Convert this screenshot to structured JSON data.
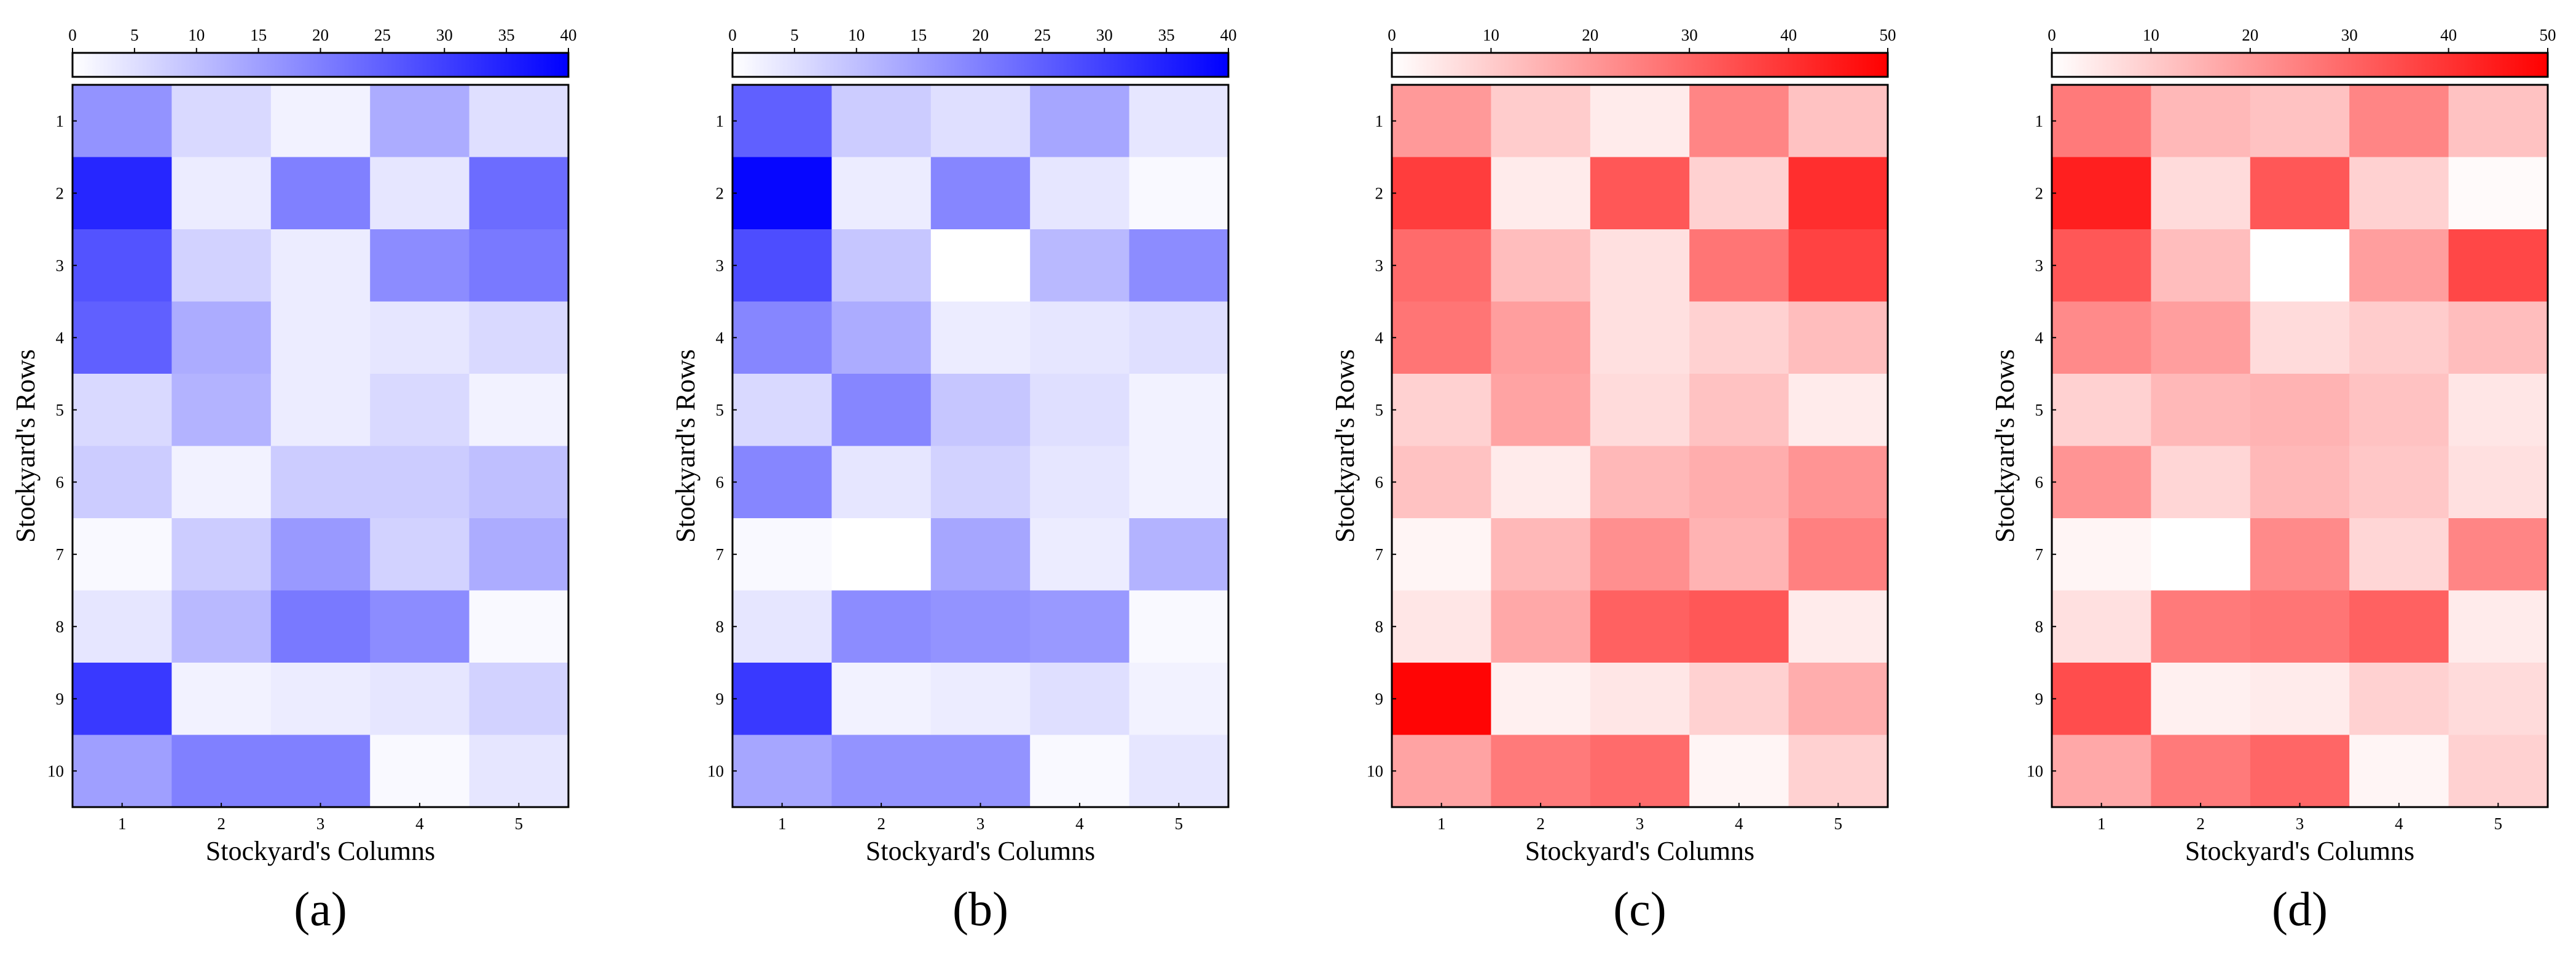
{
  "chart_data": [
    {
      "type": "heatmap",
      "panel_label": "(a)",
      "xlabel": "Stockyard's Columns",
      "ylabel": "Stockyard's Rows",
      "x_ticks": [
        "1",
        "2",
        "3",
        "4",
        "5"
      ],
      "y_ticks": [
        "1",
        "2",
        "3",
        "4",
        "5",
        "6",
        "7",
        "8",
        "9",
        "10"
      ],
      "colorbar": {
        "min": 0,
        "max": 40,
        "ticks": [
          "0",
          "5",
          "10",
          "15",
          "20",
          "25",
          "30",
          "35",
          "40"
        ],
        "color": "#0000ff"
      },
      "values": [
        [
          17,
          6,
          2,
          13,
          5
        ],
        [
          34,
          3,
          20,
          4,
          23
        ],
        [
          27,
          7,
          3,
          18,
          21
        ],
        [
          25,
          13,
          3,
          4,
          6
        ],
        [
          6,
          12,
          3,
          6,
          2
        ],
        [
          8,
          2,
          8,
          8,
          10
        ],
        [
          1,
          8,
          16,
          7,
          13
        ],
        [
          4,
          11,
          21,
          18,
          1
        ],
        [
          31,
          2,
          3,
          4,
          7
        ],
        [
          15,
          20,
          20,
          1,
          4
        ]
      ]
    },
    {
      "type": "heatmap",
      "panel_label": "(b)",
      "xlabel": "Stockyard's Columns",
      "ylabel": "Stockyard's Rows",
      "x_ticks": [
        "1",
        "2",
        "3",
        "4",
        "5"
      ],
      "y_ticks": [
        "1",
        "2",
        "3",
        "4",
        "5",
        "6",
        "7",
        "8",
        "9",
        "10"
      ],
      "colorbar": {
        "min": 0,
        "max": 40,
        "ticks": [
          "0",
          "5",
          "10",
          "15",
          "20",
          "25",
          "30",
          "35",
          "40"
        ],
        "color": "#0000ff"
      },
      "values": [
        [
          25,
          8,
          5,
          14,
          4
        ],
        [
          39,
          3,
          19,
          4,
          1
        ],
        [
          28,
          9,
          0,
          11,
          18
        ],
        [
          19,
          13,
          3,
          4,
          5
        ],
        [
          6,
          19,
          9,
          5,
          2
        ],
        [
          19,
          4,
          7,
          4,
          2
        ],
        [
          1,
          0,
          14,
          3,
          12
        ],
        [
          4,
          18,
          17,
          16,
          1
        ],
        [
          31,
          2,
          3,
          5,
          2
        ],
        [
          14,
          17,
          17,
          1,
          4
        ]
      ]
    },
    {
      "type": "heatmap",
      "panel_label": "(c)",
      "xlabel": "Stockyard's Columns",
      "ylabel": "Stockyard's Rows",
      "x_ticks": [
        "1",
        "2",
        "3",
        "4",
        "5"
      ],
      "y_ticks": [
        "1",
        "2",
        "3",
        "4",
        "5",
        "6",
        "7",
        "8",
        "9",
        "10"
      ],
      "colorbar": {
        "min": 0,
        "max": 50,
        "ticks": [
          "0",
          "10",
          "20",
          "30",
          "40",
          "50"
        ],
        "color": "#ff0000"
      },
      "values": [
        [
          20,
          10,
          4,
          24,
          12
        ],
        [
          38,
          4,
          33,
          9,
          41
        ],
        [
          29,
          13,
          6,
          27,
          37
        ],
        [
          27,
          19,
          6,
          9,
          13
        ],
        [
          9,
          18,
          7,
          12,
          4
        ],
        [
          12,
          4,
          14,
          16,
          21
        ],
        [
          2,
          14,
          22,
          15,
          25
        ],
        [
          5,
          17,
          31,
          33,
          4
        ],
        [
          49,
          3,
          5,
          9,
          16
        ],
        [
          18,
          26,
          29,
          2,
          9
        ]
      ]
    },
    {
      "type": "heatmap",
      "panel_label": "(d)",
      "xlabel": "Stockyard's Columns",
      "ylabel": "Stockyard's Rows",
      "x_ticks": [
        "1",
        "2",
        "3",
        "4",
        "5"
      ],
      "y_ticks": [
        "1",
        "2",
        "3",
        "4",
        "5",
        "6",
        "7",
        "8",
        "9",
        "10"
      ],
      "colorbar": {
        "min": 0,
        "max": 50,
        "ticks": [
          "0",
          "10",
          "20",
          "30",
          "40",
          "50"
        ],
        "color": "#ff0000"
      },
      "values": [
        [
          26,
          14,
          12,
          24,
          12
        ],
        [
          44,
          7,
          33,
          9,
          1
        ],
        [
          33,
          13,
          0,
          19,
          36
        ],
        [
          23,
          19,
          7,
          10,
          13
        ],
        [
          9,
          14,
          15,
          12,
          5
        ],
        [
          21,
          8,
          14,
          11,
          6
        ],
        [
          2,
          0,
          23,
          8,
          24
        ],
        [
          6,
          26,
          27,
          31,
          4
        ],
        [
          35,
          3,
          4,
          9,
          7
        ],
        [
          17,
          26,
          30,
          2,
          9
        ]
      ]
    }
  ]
}
